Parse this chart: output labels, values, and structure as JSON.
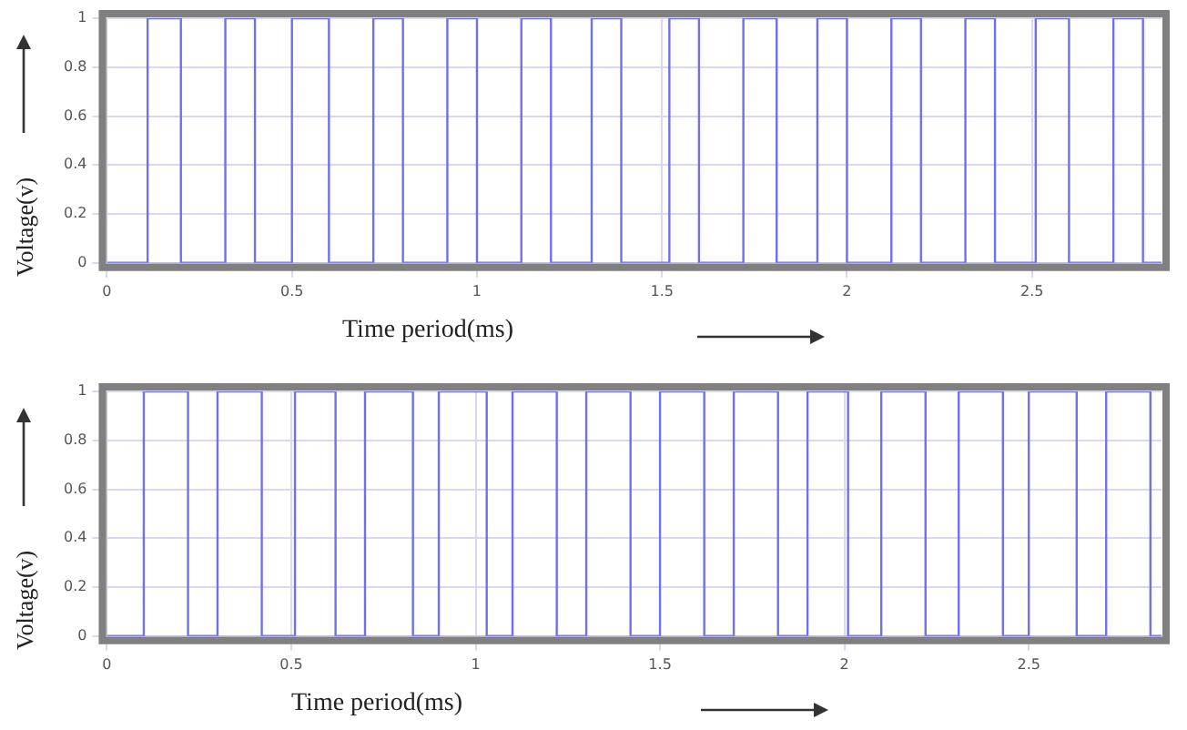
{
  "chart_data": [
    {
      "type": "step",
      "xlabel": "Time period(ms)",
      "ylabel": "Voltage(v)",
      "color": "#7070ee",
      "x": [
        0,
        0.11,
        0.2,
        0.32,
        0.4,
        0.5,
        0.6,
        0.72,
        0.8,
        0.92,
        1.0,
        1.12,
        1.2,
        1.31,
        1.39,
        1.52,
        1.6,
        1.72,
        1.81,
        1.92,
        2.0,
        2.12,
        2.2,
        2.32,
        2.4,
        2.51,
        2.6,
        2.72,
        2.8,
        2.85
      ],
      "values": [
        0,
        1,
        0,
        1,
        0,
        1,
        0,
        1,
        0,
        1,
        0,
        1,
        0,
        1,
        0,
        1,
        0,
        1,
        0,
        1,
        0,
        1,
        0,
        1,
        0,
        1,
        0,
        1,
        0,
        0
      ],
      "xlim": [
        0,
        2.85
      ],
      "ylim": [
        0,
        1
      ],
      "xticks": [
        0,
        0.5,
        1,
        1.5,
        2,
        2.5
      ],
      "yticks": [
        0,
        0.2,
        0.4,
        0.6,
        0.8,
        1
      ],
      "grid": true
    },
    {
      "type": "step",
      "xlabel": "Time period(ms)",
      "ylabel": "Voltage(v)",
      "color": "#7070ee",
      "x": [
        0,
        0.1,
        0.22,
        0.3,
        0.42,
        0.51,
        0.62,
        0.7,
        0.83,
        0.9,
        1.03,
        1.1,
        1.22,
        1.3,
        1.42,
        1.5,
        1.62,
        1.7,
        1.82,
        1.9,
        2.01,
        2.1,
        2.22,
        2.31,
        2.43,
        2.5,
        2.63,
        2.71,
        2.83,
        2.86
      ],
      "values": [
        0,
        1,
        0,
        1,
        0,
        1,
        0,
        1,
        0,
        1,
        0,
        1,
        0,
        1,
        0,
        1,
        0,
        1,
        0,
        1,
        0,
        1,
        0,
        1,
        0,
        1,
        0,
        1,
        0,
        0
      ],
      "xlim": [
        0,
        2.86
      ],
      "ylim": [
        0,
        1
      ],
      "xticks": [
        0,
        0.5,
        1,
        1.5,
        2,
        2.5
      ],
      "yticks": [
        0,
        0.2,
        0.4,
        0.6,
        0.8,
        1
      ],
      "grid": true
    }
  ]
}
